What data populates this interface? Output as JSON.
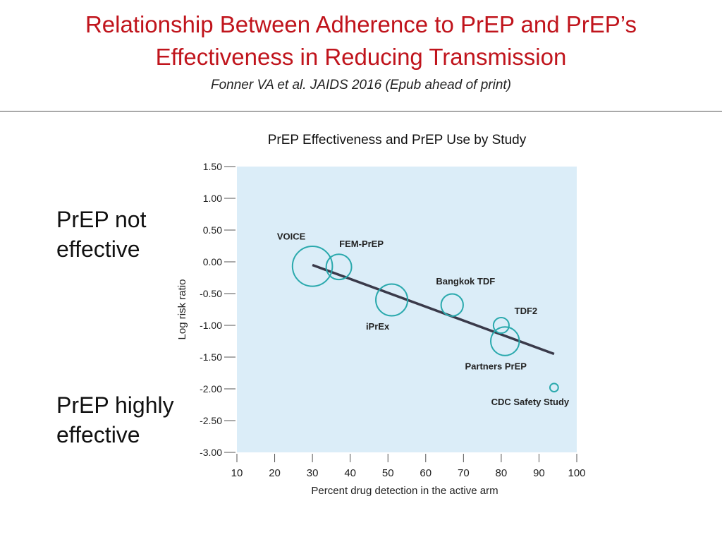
{
  "slide": {
    "title_line1": "Relationship Between Adherence to PrEP and PrEP’s",
    "title_line2": "Effectiveness in Reducing Transmission",
    "citation": "Fonner VA et al. JAIDS 2016 (Epub ahead of print)",
    "label_top": [
      "PrEP not",
      "effective"
    ],
    "label_bottom": [
      "PrEP highly",
      "effective"
    ]
  },
  "colors": {
    "title": "#c0141c",
    "plot_background": "#dbedf8",
    "bubble": "#2aa9ad",
    "trend_line": "#3a3a4a"
  },
  "chart_data": {
    "type": "scatter",
    "title": "PrEP Effectiveness and PrEP Use by Study",
    "xlabel": "Percent drug detection in the active arm",
    "ylabel": "Log risk ratio",
    "xlim": [
      10,
      100
    ],
    "ylim": [
      -3.0,
      1.5
    ],
    "x_ticks": [
      "10",
      "20",
      "30",
      "40",
      "50",
      "60",
      "70",
      "80",
      "90",
      "100"
    ],
    "y_ticks": [
      "1.50",
      "1.00",
      "0.50",
      "0.00",
      "-0.50",
      "-1.00",
      "-1.50",
      "-2.00",
      "-2.50",
      "-3.00"
    ],
    "grid": false,
    "points": [
      {
        "label": "VOICE",
        "x": 30,
        "y": -0.07,
        "size": 2.2
      },
      {
        "label": "FEM-PrEP",
        "x": 37,
        "y": -0.08,
        "size": 1.3
      },
      {
        "label": "iPrEx",
        "x": 51,
        "y": -0.6,
        "size": 1.7
      },
      {
        "label": "Bangkok TDF",
        "x": 67,
        "y": -0.68,
        "size": 1.1
      },
      {
        "label": "TDF2",
        "x": 80,
        "y": -1.0,
        "size": 0.7
      },
      {
        "label": "Partners PrEP",
        "x": 81,
        "y": -1.25,
        "size": 1.5
      },
      {
        "label": "CDC Safety Study",
        "x": 94,
        "y": -1.98,
        "size": 0.25
      }
    ],
    "trend_line": {
      "x": [
        30,
        94
      ],
      "y": [
        -0.05,
        -1.45
      ]
    }
  }
}
